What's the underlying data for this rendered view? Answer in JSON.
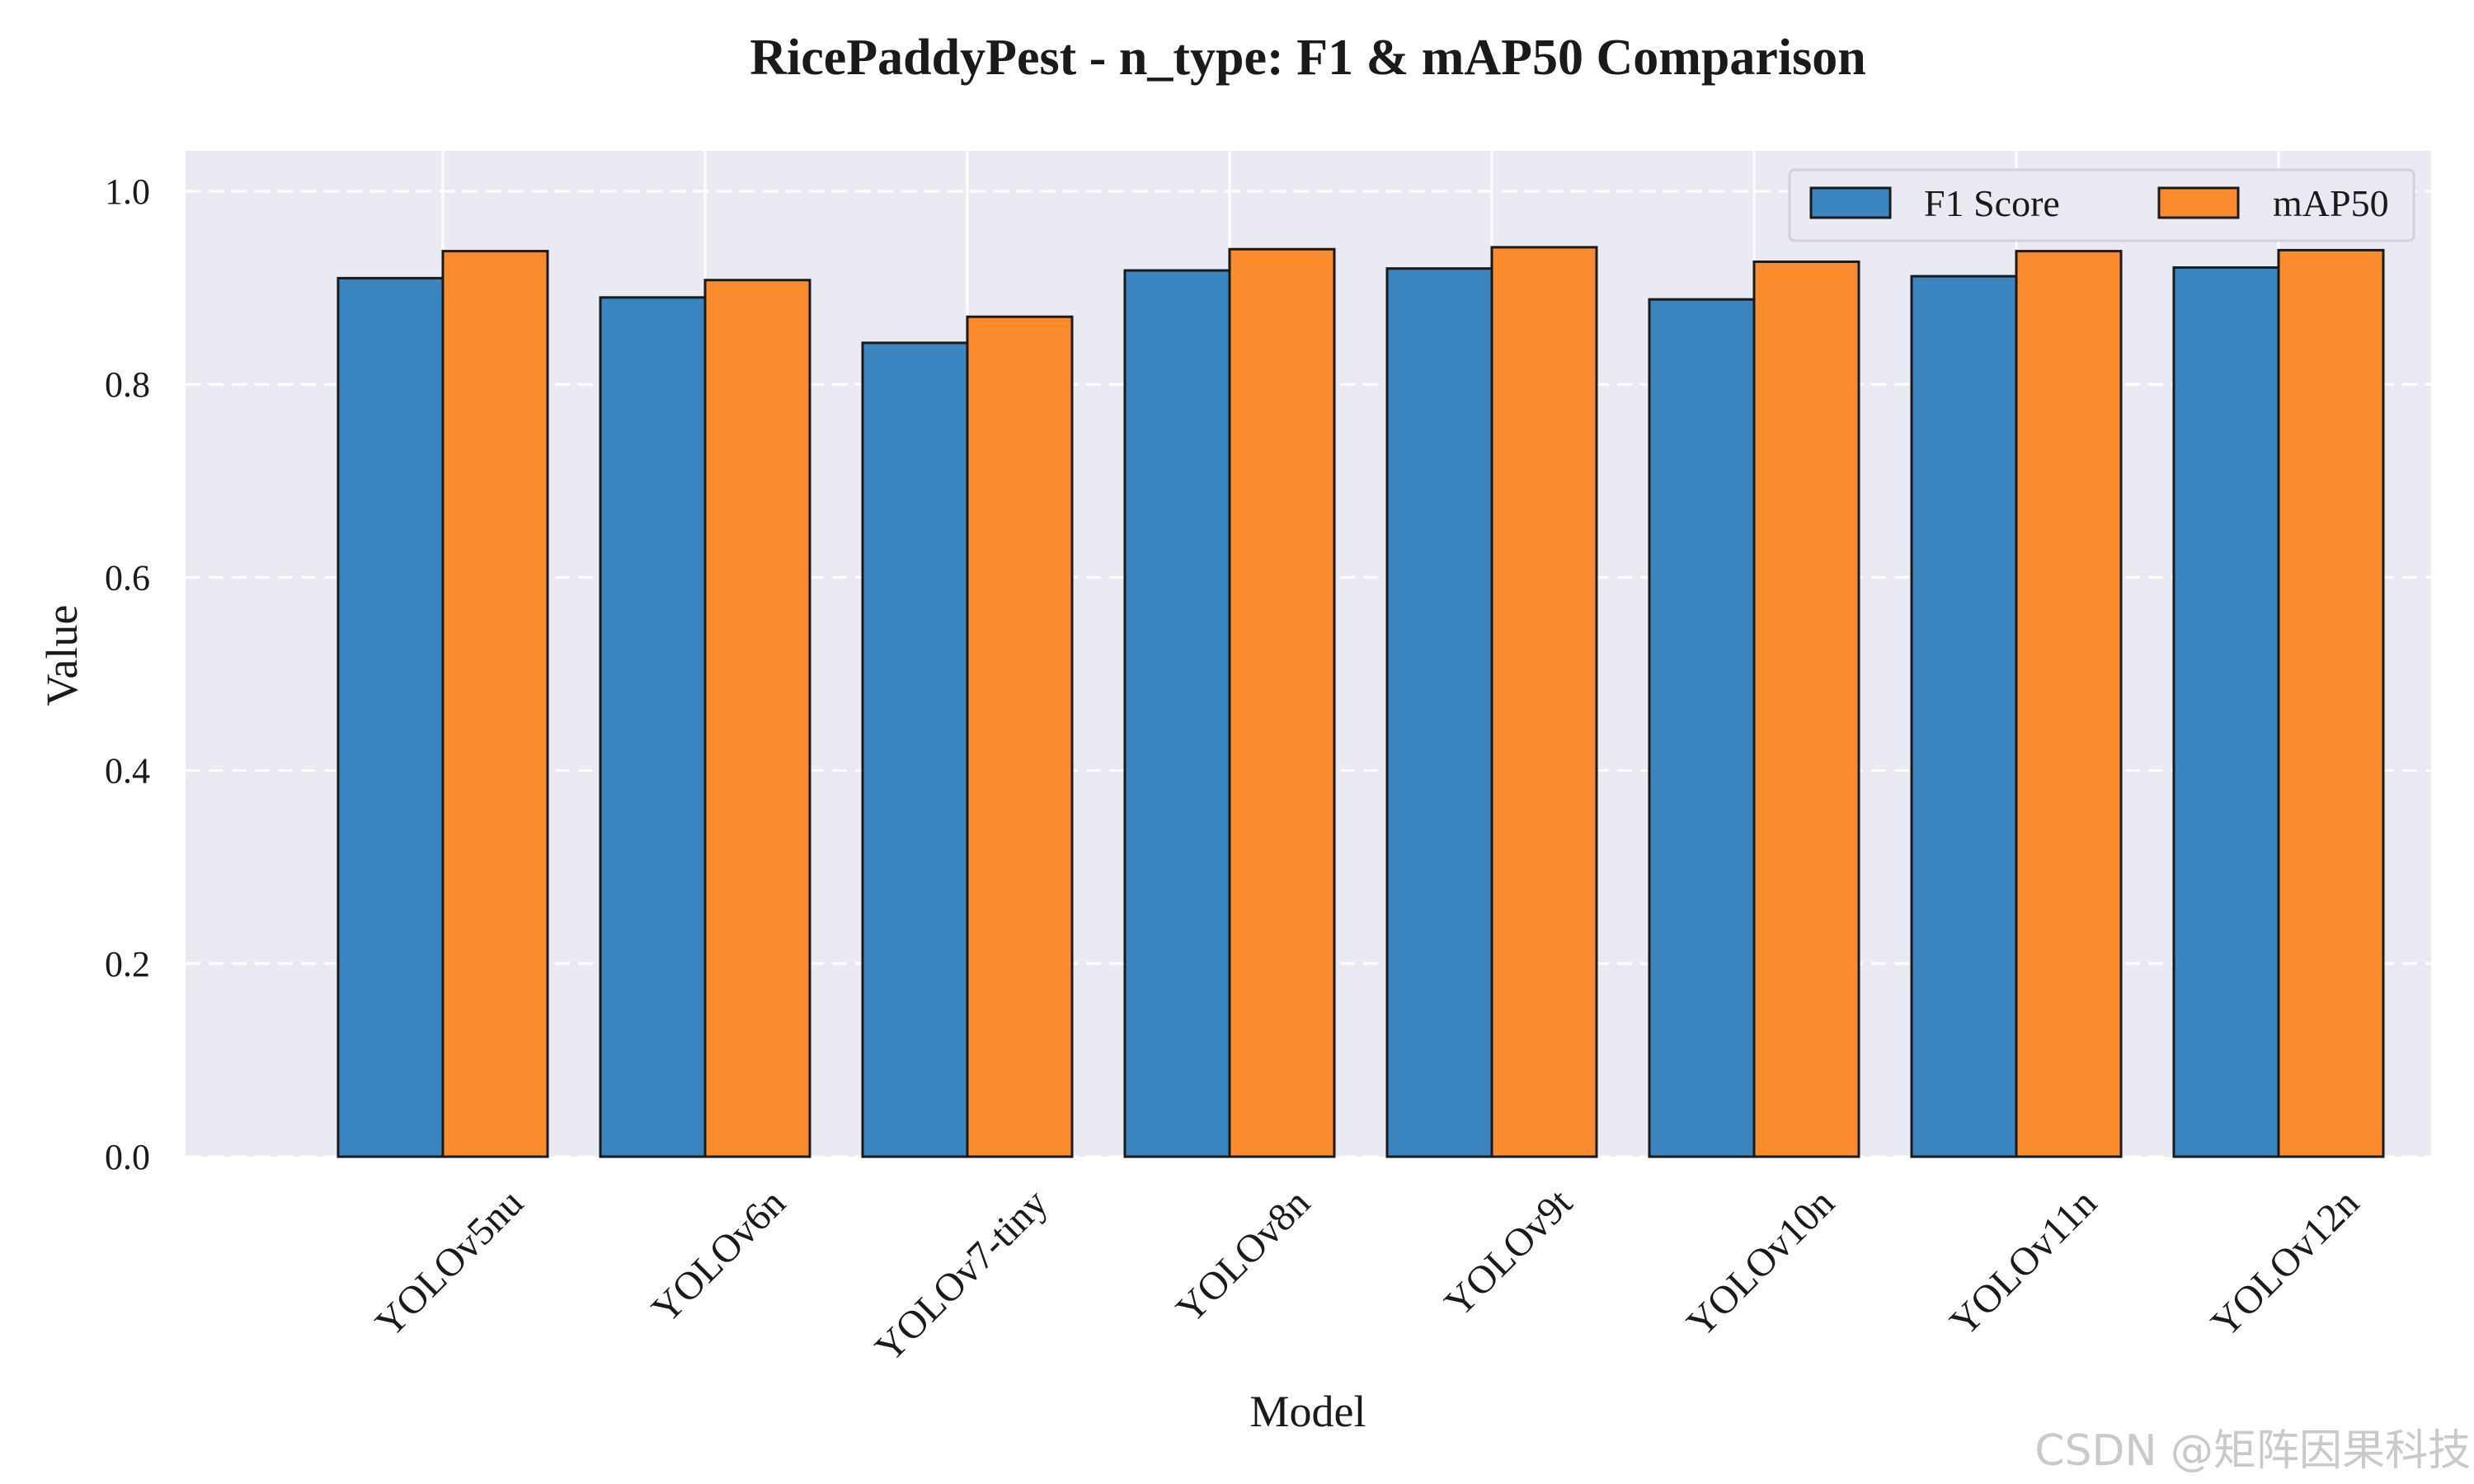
{
  "chart_data": {
    "type": "bar",
    "title": "RicePaddyPest - n_type: F1 & mAP50 Comparison",
    "xlabel": "Model",
    "ylabel": "Value",
    "ylim": [
      0,
      1.04
    ],
    "yticks": [
      "0.0",
      "0.2",
      "0.4",
      "0.6",
      "0.8",
      "1.0"
    ],
    "grid": true,
    "legend_position": "top-right",
    "categories": [
      "YOLOv5nu",
      "YOLOv6n",
      "YOLOv7-tiny",
      "YOLOv8n",
      "YOLOv9t",
      "YOLOv10n",
      "YOLOv11n",
      "YOLOv12n"
    ],
    "series": [
      {
        "name": "F1 Score",
        "color": "#3a84bf",
        "values": [
          0.91,
          0.89,
          0.843,
          0.918,
          0.92,
          0.888,
          0.912,
          0.921
        ]
      },
      {
        "name": "mAP50",
        "color": "#fb8c2d",
        "values": [
          0.938,
          0.908,
          0.87,
          0.94,
          0.942,
          0.927,
          0.938,
          0.939
        ]
      }
    ],
    "background_color": "#eaeaf2",
    "grid_color": "#ffffff"
  },
  "watermark": "CSDN @矩阵因果科技"
}
